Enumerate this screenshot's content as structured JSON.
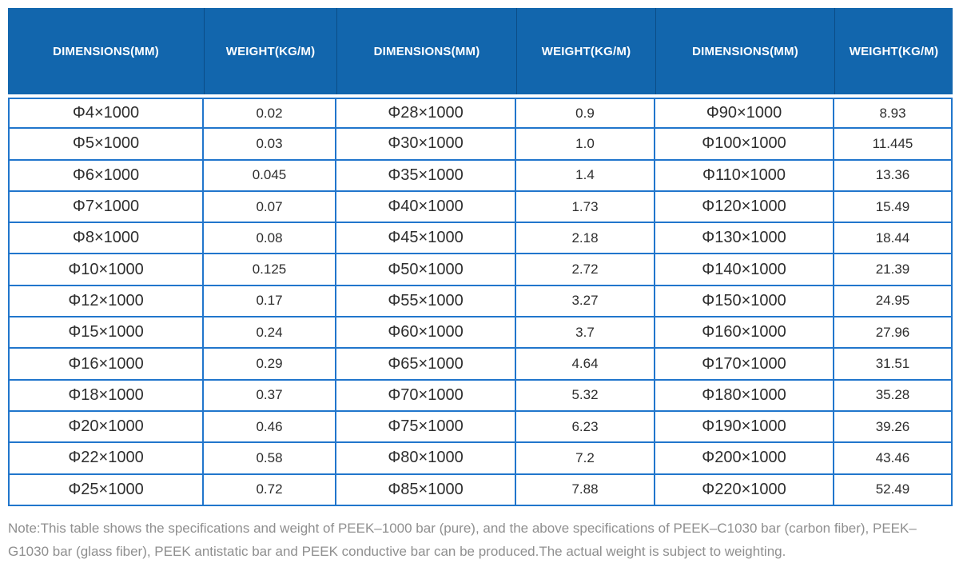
{
  "colors": {
    "header_bg": "#1266ad",
    "header_divider": "#0b4d87",
    "grid_border": "#2176cc",
    "body_text": "#2e2e2e",
    "note_text": "#8f8f8f"
  },
  "table": {
    "header": [
      "DIMENSIONS(MM)",
      "WEIGHT(KG/M)",
      "DIMENSIONS(MM)",
      "WEIGHT(KG/M)",
      "DIMENSIONS(MM)",
      "WEIGHT(KG/M)"
    ],
    "rows": [
      [
        "Φ4×1000",
        "0.02",
        "Φ28×1000",
        "0.9",
        "Φ90×1000",
        "8.93"
      ],
      [
        "Φ5×1000",
        "0.03",
        "Φ30×1000",
        "1.0",
        "Φ100×1000",
        "11.445"
      ],
      [
        "Φ6×1000",
        "0.045",
        "Φ35×1000",
        "1.4",
        "Φ110×1000",
        "13.36"
      ],
      [
        "Φ7×1000",
        "0.07",
        "Φ40×1000",
        "1.73",
        "Φ120×1000",
        "15.49"
      ],
      [
        "Φ8×1000",
        "0.08",
        "Φ45×1000",
        "2.18",
        "Φ130×1000",
        "18.44"
      ],
      [
        "Φ10×1000",
        "0.125",
        "Φ50×1000",
        "2.72",
        "Φ140×1000",
        "21.39"
      ],
      [
        "Φ12×1000",
        "0.17",
        "Φ55×1000",
        "3.27",
        "Φ150×1000",
        "24.95"
      ],
      [
        "Φ15×1000",
        "0.24",
        "Φ60×1000",
        "3.7",
        "Φ160×1000",
        "27.96"
      ],
      [
        "Φ16×1000",
        "0.29",
        "Φ65×1000",
        "4.64",
        "Φ170×1000",
        "31.51"
      ],
      [
        "Φ18×1000",
        "0.37",
        "Φ70×1000",
        "5.32",
        "Φ180×1000",
        "35.28"
      ],
      [
        "Φ20×1000",
        "0.46",
        "Φ75×1000",
        "6.23",
        "Φ190×1000",
        "39.26"
      ],
      [
        "Φ22×1000",
        "0.58",
        "Φ80×1000",
        "7.2",
        "Φ200×1000",
        "43.46"
      ],
      [
        "Φ25×1000",
        "0.72",
        "Φ85×1000",
        "7.88",
        "Φ220×1000",
        "52.49"
      ]
    ]
  },
  "note": "Note:This table shows the specifications and weight of PEEK–1000 bar (pure), and the above specifications of PEEK–C1030 bar (carbon fiber), PEEK–G1030 bar (glass fiber), PEEK antistatic bar and PEEK conductive bar can be produced.The actual weight is subject to weighting."
}
